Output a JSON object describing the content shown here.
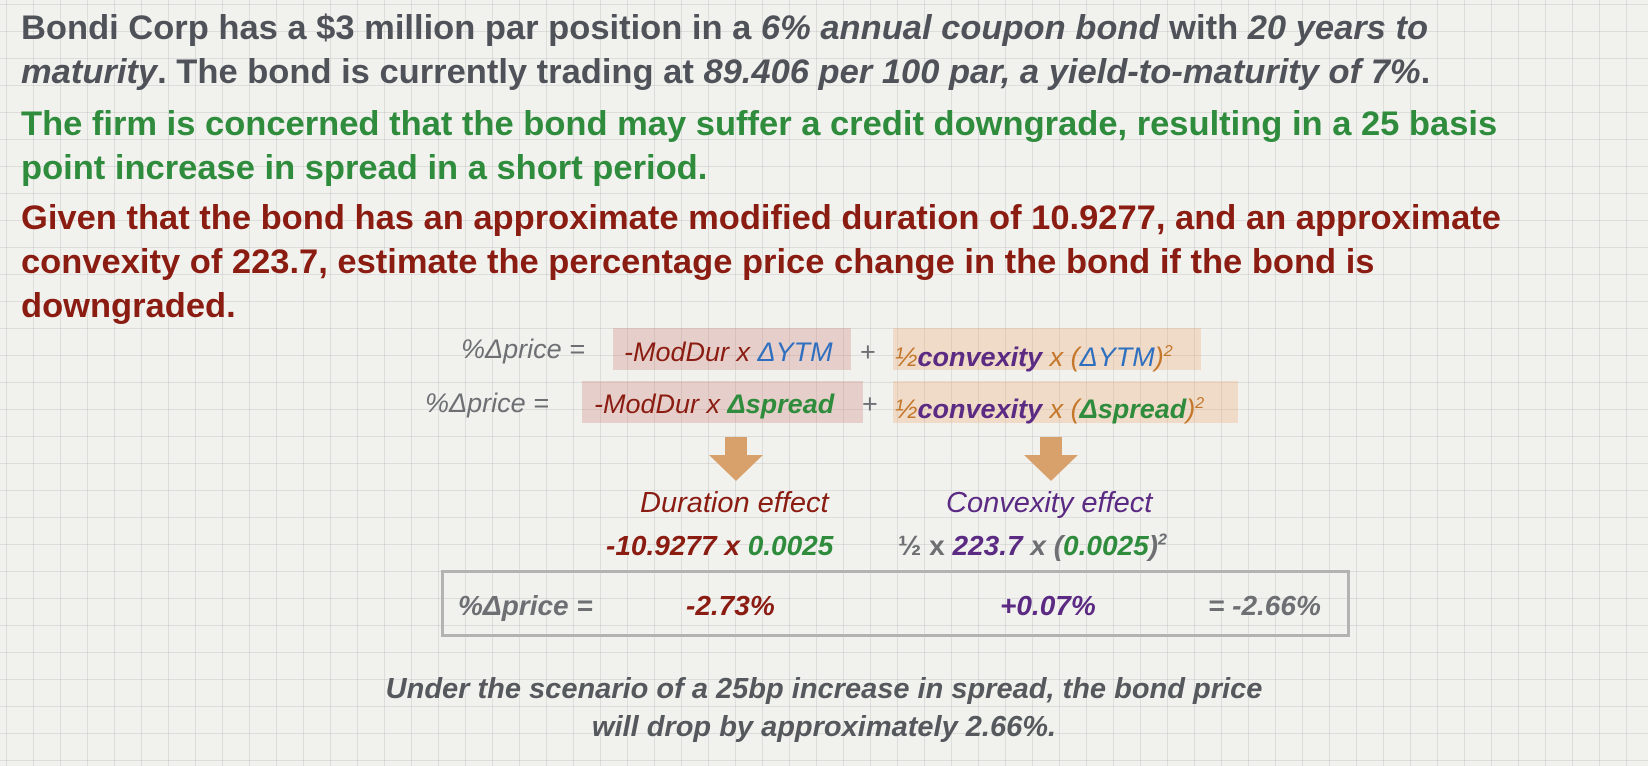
{
  "problem": {
    "p1_line1": [
      "Bondi Corp has a $3 million par position in a ",
      "6% annual coupon bond",
      " with ",
      "20 years to"
    ],
    "p1_line2": [
      "maturity",
      ".  The bond is currently trading at ",
      "89.406 per 100 par, a yield-to-maturity of 7%",
      "."
    ],
    "p2_line1": "The firm is concerned that the bond may suffer a credit downgrade, resulting in a 25 basis",
    "p2_line2": "point increase in spread in a short period.",
    "p3_line1": "Given that the bond has an approximate modified duration of 10.9277, and an approximate",
    "p3_line2": "convexity of 223.7, estimate the percentage price change in the bond if the bond is",
    "p3_line3": "downgraded."
  },
  "formula1": {
    "lhs": "%Δprice =",
    "dur_a": "-ModDur x ",
    "dur_b": "ΔYTM",
    "plus": "+",
    "half": "½",
    "conv": "convexity",
    "x": " x ",
    "open": "(",
    "var": "ΔYTM",
    "close": ")",
    "sq": "2"
  },
  "formula2": {
    "lhs": "%Δprice =",
    "dur_a": "-ModDur x ",
    "dur_b": "Δspread",
    "plus": "+",
    "half": "½",
    "conv": "convexity",
    "x": " x ",
    "open": "(",
    "var": "Δspread",
    "close": ")",
    "sq": "2"
  },
  "duration_effect": {
    "label": "Duration effect",
    "moddur": "-10.9277",
    "x": " x ",
    "spread": "0.0025"
  },
  "convexity_effect": {
    "label": "Convexity effect",
    "half": "½ x ",
    "conv": "223.7",
    "x": " x (",
    "spread": "0.0025",
    "close": ")",
    "sq": "2"
  },
  "result": {
    "label": "%Δprice =",
    "duration_value": "-2.73%",
    "convexity_value": "+0.07%",
    "total": "= -2.66%"
  },
  "conclusion": {
    "line1": "Under the scenario of a 25bp increase in spread, the bond price",
    "line2": "will drop by approximately 2.66%."
  },
  "colors": {
    "gray_text": "#4f5359",
    "green": "#2e8c3c",
    "dark_red": "#8a1c12",
    "blue": "#2f6fbf",
    "purple": "#5b2a82",
    "orange": "#c4772a",
    "arrow": "#d8a06a"
  }
}
